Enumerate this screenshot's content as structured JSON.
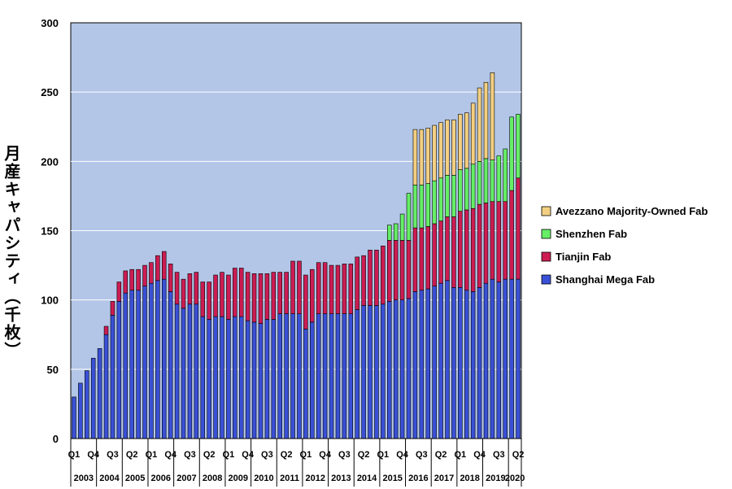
{
  "chart_data": {
    "type": "bar",
    "stacked": true,
    "title": "",
    "ylabel": "月産キャパシティ（千枚）",
    "ylim": [
      0,
      300
    ],
    "yticks": [
      0,
      50,
      100,
      150,
      200,
      250,
      300
    ],
    "grid": true,
    "legend_position": "right",
    "x_start": "2003 Q1",
    "year_labels": [
      "2003",
      "2004",
      "2005",
      "2006",
      "2007",
      "2008",
      "2009",
      "2010",
      "2011",
      "2012",
      "2013",
      "2014",
      "2015",
      "2016",
      "2017",
      "2018",
      "2019",
      "2020"
    ],
    "quarter_labels": [
      "Q1",
      "Q4",
      "Q3",
      "Q2",
      "Q1",
      "Q4",
      "Q3",
      "Q2",
      "Q1",
      "Q4",
      "Q3",
      "Q2",
      "Q1",
      "Q4",
      "Q3",
      "Q2",
      "Q1",
      "Q4",
      "Q3",
      "Q2",
      "Q1",
      "Q4",
      "Q3",
      "Q2"
    ],
    "series": [
      {
        "name": "Shanghai Mega Fab",
        "color": "#3a50d6",
        "values": [
          30,
          40,
          49,
          58,
          65,
          75,
          89,
          99,
          105,
          107,
          107,
          110,
          112,
          114,
          115,
          106,
          97,
          94,
          97,
          97,
          88,
          86,
          88,
          88,
          86,
          88,
          88,
          85,
          84,
          83,
          86,
          86,
          90,
          90,
          90,
          90,
          79,
          84,
          90,
          90,
          90,
          90,
          90,
          90,
          93,
          96,
          96,
          96,
          97,
          99,
          100,
          100,
          101,
          106,
          107,
          108,
          110,
          112,
          114,
          109,
          109,
          107,
          106,
          109,
          112,
          115,
          113,
          115,
          115,
          115
        ]
      },
      {
        "name": "Tianjin Fab",
        "color": "#cc1c52",
        "values": [
          0,
          0,
          0,
          0,
          0,
          6,
          10,
          14,
          16,
          15,
          15,
          15,
          15,
          18,
          20,
          20,
          23,
          21,
          22,
          23,
          25,
          27,
          30,
          32,
          32,
          35,
          35,
          35,
          35,
          36,
          33,
          34,
          30,
          30,
          38,
          38,
          39,
          38,
          37,
          37,
          35,
          35,
          36,
          36,
          38,
          36,
          40,
          40,
          42,
          44,
          43,
          43,
          42,
          46,
          45,
          45,
          45,
          45,
          46,
          51,
          55,
          58,
          60,
          60,
          58,
          56,
          58,
          56,
          64,
          73
        ]
      },
      {
        "name": "Shenzhen Fab",
        "color": "#66ee66",
        "values": [
          0,
          0,
          0,
          0,
          0,
          0,
          0,
          0,
          0,
          0,
          0,
          0,
          0,
          0,
          0,
          0,
          0,
          0,
          0,
          0,
          0,
          0,
          0,
          0,
          0,
          0,
          0,
          0,
          0,
          0,
          0,
          0,
          0,
          0,
          0,
          0,
          0,
          0,
          0,
          0,
          0,
          0,
          0,
          0,
          0,
          0,
          0,
          0,
          0,
          11,
          12,
          19,
          34,
          31,
          31,
          31,
          31,
          31,
          30,
          30,
          30,
          30,
          32,
          31,
          32,
          30,
          33,
          38,
          53,
          46
        ]
      },
      {
        "name": "Avezzano Majority-Owned Fab",
        "color": "#f3cf82",
        "values": [
          0,
          0,
          0,
          0,
          0,
          0,
          0,
          0,
          0,
          0,
          0,
          0,
          0,
          0,
          0,
          0,
          0,
          0,
          0,
          0,
          0,
          0,
          0,
          0,
          0,
          0,
          0,
          0,
          0,
          0,
          0,
          0,
          0,
          0,
          0,
          0,
          0,
          0,
          0,
          0,
          0,
          0,
          0,
          0,
          0,
          0,
          0,
          0,
          0,
          0,
          0,
          0,
          0,
          40,
          40,
          40,
          40,
          40,
          40,
          40,
          40,
          40,
          44,
          53,
          55,
          63,
          0,
          0,
          0,
          0
        ]
      }
    ]
  }
}
